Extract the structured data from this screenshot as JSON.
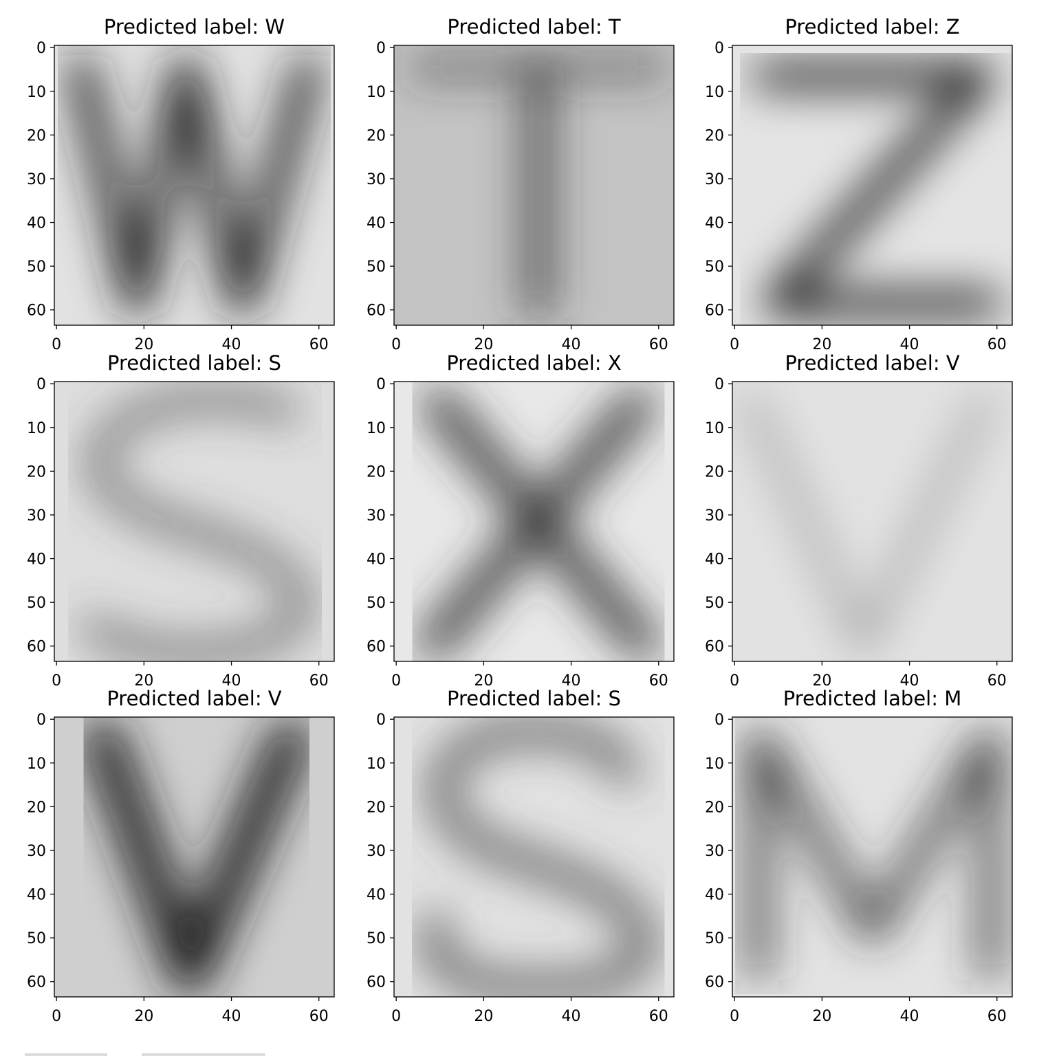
{
  "chart_data": [
    {
      "type": "image",
      "title": "Predicted label: W",
      "letter": "W",
      "xlim": [
        0,
        63
      ],
      "ylim": [
        63,
        0
      ],
      "xticks": [
        0,
        20,
        40,
        60
      ],
      "yticks": [
        0,
        10,
        20,
        30,
        40,
        50,
        60
      ],
      "background": "#e2e2e2",
      "ink": "#1a1a1a"
    },
    {
      "type": "image",
      "title": "Predicted label: T",
      "letter": "T",
      "xlim": [
        0,
        63
      ],
      "ylim": [
        63,
        0
      ],
      "xticks": [
        0,
        20,
        40,
        60
      ],
      "yticks": [
        0,
        10,
        20,
        30,
        40,
        50,
        60
      ],
      "background": "#c3c3c3",
      "ink": "#2e2e2e"
    },
    {
      "type": "image",
      "title": "Predicted label: Z",
      "letter": "Z",
      "xlim": [
        0,
        63
      ],
      "ylim": [
        63,
        0
      ],
      "xticks": [
        0,
        20,
        40,
        60
      ],
      "yticks": [
        0,
        10,
        20,
        30,
        40,
        50,
        60
      ],
      "background": "#e4e4e4",
      "ink": "#0a0a0a"
    },
    {
      "type": "image",
      "title": "Predicted label: S",
      "letter": "S",
      "xlim": [
        0,
        63
      ],
      "ylim": [
        63,
        0
      ],
      "xticks": [
        0,
        20,
        40,
        60
      ],
      "yticks": [
        0,
        10,
        20,
        30,
        40,
        50,
        60
      ],
      "background": "#dedede",
      "ink": "#454545"
    },
    {
      "type": "image",
      "title": "Predicted label: X",
      "letter": "X",
      "xlim": [
        0,
        63
      ],
      "ylim": [
        63,
        0
      ],
      "xticks": [
        0,
        20,
        40,
        60
      ],
      "yticks": [
        0,
        10,
        20,
        30,
        40,
        50,
        60
      ],
      "background": "#e8e8e8",
      "ink": "#303030"
    },
    {
      "type": "image",
      "title": "Predicted label: V",
      "letter": "V",
      "xlim": [
        0,
        63
      ],
      "ylim": [
        63,
        0
      ],
      "xticks": [
        0,
        20,
        40,
        60
      ],
      "yticks": [
        0,
        10,
        20,
        30,
        40,
        50,
        60
      ],
      "background": "#e2e2e2",
      "ink": "#8a8a8a"
    },
    {
      "type": "image",
      "title": "Predicted label: V",
      "letter": "V",
      "xlim": [
        0,
        63
      ],
      "ylim": [
        63,
        0
      ],
      "xticks": [
        0,
        20,
        40,
        60
      ],
      "yticks": [
        0,
        10,
        20,
        30,
        40,
        50,
        60
      ],
      "background": "#cfcfcf",
      "ink": "#1a1a1a"
    },
    {
      "type": "image",
      "title": "Predicted label: S",
      "letter": "S",
      "xlim": [
        0,
        63
      ],
      "ylim": [
        63,
        0
      ],
      "xticks": [
        0,
        20,
        40,
        60
      ],
      "yticks": [
        0,
        10,
        20,
        30,
        40,
        50,
        60
      ],
      "background": "#e2e2e2",
      "ink": "#444444"
    },
    {
      "type": "image",
      "title": "Predicted label: M",
      "letter": "M",
      "xlim": [
        0,
        63
      ],
      "ylim": [
        63,
        0
      ],
      "xticks": [
        0,
        20,
        40,
        60
      ],
      "yticks": [
        0,
        10,
        20,
        30,
        40,
        50,
        60
      ],
      "background": "#e3e3e3",
      "ink": "#2a2a2a"
    }
  ]
}
